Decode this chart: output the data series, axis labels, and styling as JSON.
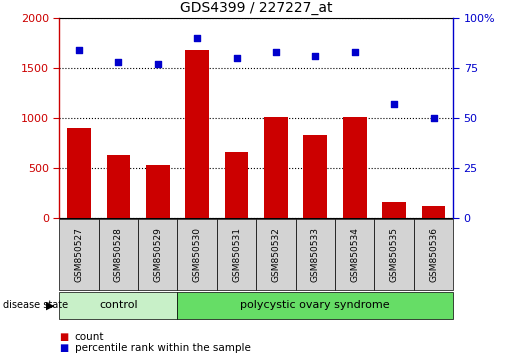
{
  "title": "GDS4399 / 227227_at",
  "samples": [
    "GSM850527",
    "GSM850528",
    "GSM850529",
    "GSM850530",
    "GSM850531",
    "GSM850532",
    "GSM850533",
    "GSM850534",
    "GSM850535",
    "GSM850536"
  ],
  "counts": [
    900,
    630,
    530,
    1680,
    660,
    1010,
    830,
    1005,
    160,
    115
  ],
  "percentiles": [
    84,
    78,
    77,
    90,
    80,
    83,
    81,
    83,
    57,
    50
  ],
  "groups": [
    "control",
    "control",
    "control",
    "polycystic ovary syndrome",
    "polycystic ovary syndrome",
    "polycystic ovary syndrome",
    "polycystic ovary syndrome",
    "polycystic ovary syndrome",
    "polycystic ovary syndrome",
    "polycystic ovary syndrome"
  ],
  "bar_color": "#cc0000",
  "dot_color": "#0000cc",
  "ylim_left": [
    0,
    2000
  ],
  "ylim_right": [
    0,
    100
  ],
  "yticks_left": [
    0,
    500,
    1000,
    1500,
    2000
  ],
  "yticks_right": [
    0,
    25,
    50,
    75,
    100
  ],
  "control_color": "#c8f0c8",
  "pcos_color": "#66dd66",
  "tick_bg_color": "#d3d3d3",
  "grid_color": "#000000",
  "left_tick_color": "#cc0000",
  "right_tick_color": "#0000cc",
  "spine_color": "#000000"
}
